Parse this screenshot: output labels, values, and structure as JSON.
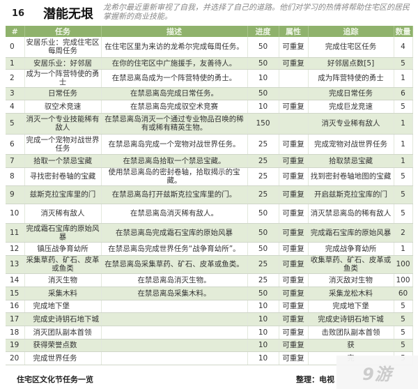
{
  "header": {
    "number": "16",
    "title": "潜能无垠",
    "intro": "龙希尔最近重新审视了自我，并选择了自己的道路。他们对学习的热情将帮助住宅区的居民掌握新的商业技能。"
  },
  "columns": [
    "#",
    "任务",
    "描述",
    "进度",
    "属性",
    "追踪",
    "数量"
  ],
  "rows": [
    [
      "0",
      "安居乐业：完成住宅区每周任务",
      "在住宅区里为来访的龙希尔完成每周任务。",
      "50",
      "可重复",
      "完成住宅区任务",
      "4"
    ],
    [
      "1",
      "安居乐业：好邻居",
      "在你的住宅区中广施援手，友善待人。",
      "50",
      "可重复",
      "好邻居点数[5]",
      "5"
    ],
    [
      "2",
      "成为一个阵营特使的勇士",
      "在禁忌离岛成为一个阵营特使的勇士。",
      "10",
      "",
      "成为阵营特使的勇士",
      "1"
    ],
    [
      "3",
      "日常任务",
      "在禁忌离岛完成日常任务。",
      "50",
      "",
      "完成日常任务",
      "6"
    ],
    [
      "4",
      "驭空术竞速",
      "在禁忌离岛完成驭空术竞赛",
      "10",
      "可重复",
      "完成巨龙竞速",
      "5"
    ],
    [
      "5",
      "消灭一个专业技能稀有敌人",
      "在禁忌离岛消灭一个通过专业物品召唤的稀有或稀有精英生物。",
      "150",
      "",
      "消灭专业稀有敌人",
      "1"
    ],
    [
      "6",
      "完成一个宠物对战世界任务",
      "在禁忌离岛完成一个宠物对战世界任务。",
      "25",
      "可重复",
      "完成宠物对战世界任务",
      "1"
    ],
    [
      "7",
      "拾取一个禁忌宝藏",
      "在禁忌离岛拾取一个禁忌宝藏。",
      "25",
      "可重复",
      "拾取禁忌宝藏",
      "1"
    ],
    [
      "8",
      "寻找密封卷轴的宝藏",
      "使用禁忌离岛的密封卷轴，拾取揭示的宝藏。",
      "25",
      "可重复",
      "找到密封卷轴地图的宝藏",
      "5"
    ],
    [
      "9",
      "兹斯克拉宝库里的门",
      "在禁忌离岛打开兹斯克拉宝库里的门。",
      "25",
      "可重复",
      "开启兹斯克拉宝库的门",
      "5"
    ],
    [
      "10",
      "消灭稀有敌人",
      "在禁忌离岛消灭稀有敌人。",
      "50",
      "可重复",
      "消灭禁忌离岛的稀有敌人",
      "5"
    ],
    [
      "11",
      "完成霜石宝库的原始风暴",
      "在禁忌离岛完成霜石宝库的原始风暴",
      "50",
      "可重复",
      "完成霜石宝库的原始风暴",
      "2"
    ],
    [
      "12",
      "镇压战争育幼所",
      "在禁忌离岛完成世界任务“战争育幼所”。",
      "50",
      "可重复",
      "完成战争育幼所",
      "1"
    ],
    [
      "13",
      "采集草药、矿石、皮革或鱼类",
      "在禁忌离岛采集草药、矿石、皮革或鱼类。",
      "25",
      "可重复",
      "收集草药、矿石、皮革或鱼类",
      "100"
    ],
    [
      "14",
      "消灭生物",
      "在禁忌离岛消灭生物。",
      "25",
      "可重复",
      "消灭敌对生物",
      "100"
    ],
    [
      "15",
      "采集木料",
      "在禁忌离岛采集木料。",
      "50",
      "可重复",
      "采集龙松木料",
      "60"
    ],
    [
      "16",
      "完成地下堡",
      "",
      "10",
      "可重复",
      "完成地下堡",
      "5"
    ],
    [
      "17",
      "完成史诗钥石地下城",
      "",
      "10",
      "可重复",
      "完成史诗钥石地下城",
      "5"
    ],
    [
      "18",
      "消灭团队副本首领",
      "",
      "10",
      "可重复",
      "击败团队副本首领",
      "5"
    ],
    [
      "19",
      "获得荣誉点数",
      "",
      "10",
      "可重复",
      "获",
      "5"
    ],
    [
      "20",
      "完成世界任务",
      "",
      "10",
      "可重复",
      "完",
      "5"
    ]
  ],
  "footer": {
    "caption": "住宅区文化节任务一览",
    "credit": "整理：电视"
  },
  "watermark": {
    "logo": "9游"
  },
  "colors": {
    "header_bg": "#8fb26c",
    "alt_row": "#e3ecd8"
  }
}
